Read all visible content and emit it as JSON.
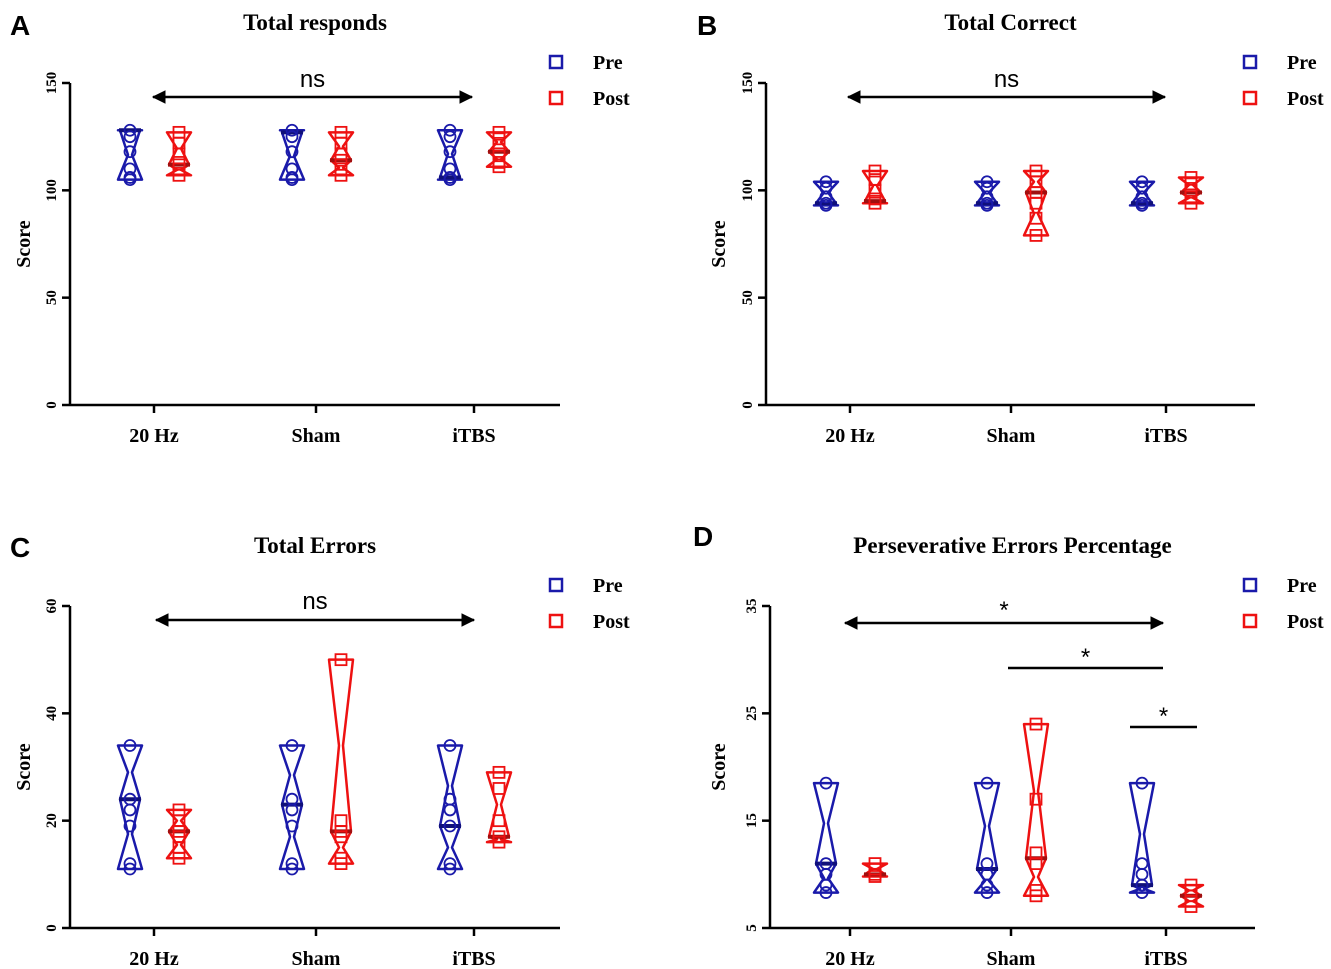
{
  "colors": {
    "pre": "#1a1aaa",
    "post": "#ee1111",
    "axis": "#000000"
  },
  "chart_data": [
    {
      "panel": "A",
      "type": "violin",
      "title": "Total responds",
      "ylabel": "Score",
      "ylim": [
        0,
        150
      ],
      "yticks": [
        "0",
        "50",
        "100",
        "150"
      ],
      "categories": [
        "20 Hz",
        "Sham",
        "iTBS"
      ],
      "legend": [
        "Pre",
        "Post"
      ],
      "series": [
        {
          "name": "Pre",
          "median": [
            128,
            127,
            106
          ],
          "values": [
            [
              128,
              125,
              118,
              110,
              106,
              105
            ],
            [
              128,
              125,
              118,
              110,
              106,
              105
            ],
            [
              128,
              125,
              118,
              110,
              106,
              105
            ]
          ]
        },
        {
          "name": "Post",
          "median": [
            112,
            114,
            118
          ],
          "values": [
            [
              127,
              122,
              117,
              113,
              110,
              107
            ],
            [
              127,
              122,
              117,
              114,
              110,
              107
            ],
            [
              127,
              124,
              121,
              117,
              113,
              111
            ]
          ]
        }
      ],
      "significance": [
        {
          "from": 0,
          "to": 2,
          "label": "ns",
          "arrow": true
        }
      ]
    },
    {
      "panel": "B",
      "type": "violin",
      "title": "Total Correct",
      "ylabel": "Score",
      "ylim": [
        0,
        150
      ],
      "yticks": [
        "0",
        "50",
        "100",
        "150"
      ],
      "categories": [
        "20 Hz",
        "Sham",
        "iTBS"
      ],
      "legend": [
        "Pre",
        "Post"
      ],
      "series": [
        {
          "name": "Pre",
          "median": [
            94,
            94,
            94
          ],
          "values": [
            [
              104,
              101,
              97,
              94,
              93
            ],
            [
              104,
              101,
              97,
              94,
              93
            ],
            [
              104,
              101,
              97,
              94,
              93
            ]
          ]
        },
        {
          "name": "Post",
          "median": [
            95,
            99,
            99
          ],
          "values": [
            [
              109,
              105,
              100,
              96,
              94
            ],
            [
              109,
              104,
              99,
              94,
              87,
              79
            ],
            [
              106,
              103,
              100,
              97,
              94
            ]
          ]
        }
      ],
      "significance": [
        {
          "from": 0,
          "to": 2,
          "label": "ns",
          "arrow": true
        }
      ]
    },
    {
      "panel": "C",
      "type": "violin",
      "title": "Total Errors",
      "ylabel": "Score",
      "ylim": [
        0,
        60
      ],
      "yticks": [
        "0",
        "20",
        "40",
        "60"
      ],
      "categories": [
        "20 Hz",
        "Sham",
        "iTBS"
      ],
      "legend": [
        "Pre",
        "Post"
      ],
      "series": [
        {
          "name": "Pre",
          "median": [
            24,
            23,
            19
          ],
          "values": [
            [
              34,
              24,
              22,
              19,
              12,
              11
            ],
            [
              34,
              24,
              22,
              19,
              12,
              11
            ],
            [
              34,
              24,
              22,
              19,
              12,
              11
            ]
          ]
        },
        {
          "name": "Post",
          "median": [
            18,
            18,
            17
          ],
          "values": [
            [
              22,
              20,
              18,
              17,
              15,
              13
            ],
            [
              50,
              20,
              18,
              17,
              13,
              12
            ],
            [
              29,
              26,
              20,
              17,
              16
            ]
          ]
        }
      ],
      "significance": [
        {
          "from": 0,
          "to": 2,
          "label": "ns",
          "arrow": true
        }
      ]
    },
    {
      "panel": "D",
      "type": "violin",
      "title": "Perseverative Errors Percentage",
      "ylabel": "Score",
      "ylim": [
        5,
        35
      ],
      "yticks": [
        "5",
        "15",
        "25",
        "35"
      ],
      "categories": [
        "20 Hz",
        "Sham",
        "iTBS"
      ],
      "legend": [
        "Pre",
        "Post"
      ],
      "series": [
        {
          "name": "Pre",
          "median": [
            11,
            10.5,
            9
          ],
          "values": [
            [
              18.5,
              11,
              10,
              9,
              8.3
            ],
            [
              18.5,
              11,
              10,
              9,
              8.3
            ],
            [
              18.5,
              11,
              10,
              9,
              8.3
            ]
          ]
        },
        {
          "name": "Post",
          "median": [
            10,
            11.5,
            8
          ],
          "values": [
            [
              11,
              10.5,
              10,
              9.8
            ],
            [
              24,
              17,
              12,
              11,
              8.5,
              8
            ],
            [
              9,
              8.5,
              8,
              7.5,
              7
            ]
          ]
        }
      ],
      "significance": [
        {
          "from": 0,
          "to": 2,
          "label": "*",
          "arrow": true
        },
        {
          "from": 1,
          "to": 2,
          "label": "*",
          "arrow": false
        },
        {
          "from": 2,
          "to": 2,
          "label": "*",
          "arrow": false
        }
      ]
    }
  ]
}
